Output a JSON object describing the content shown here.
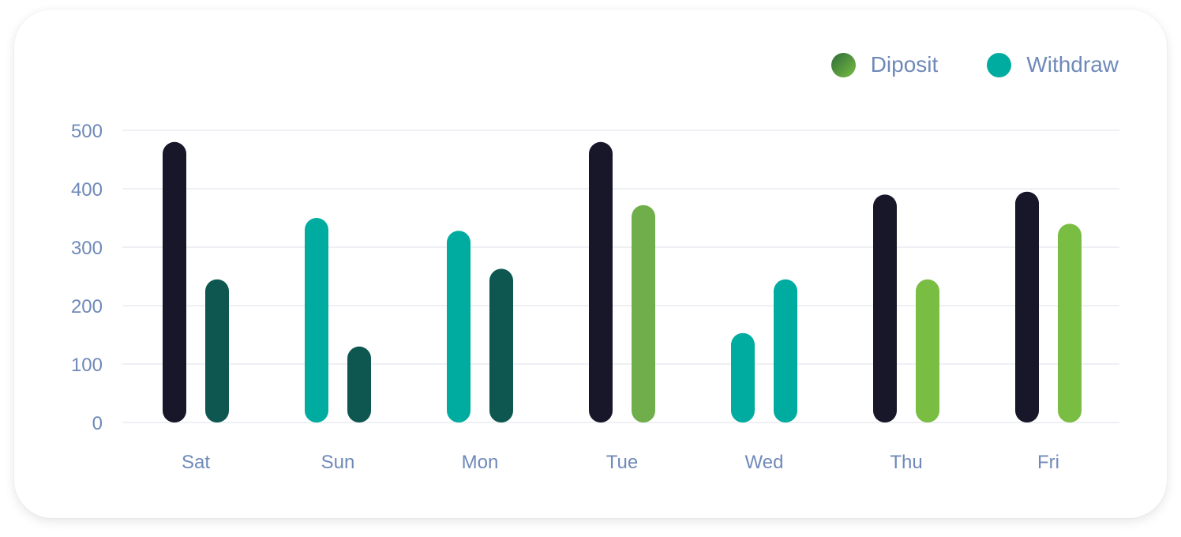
{
  "legend": {
    "deposit": {
      "label": "Diposit",
      "color_from": "#2e6b3a",
      "color_to": "#79bd43"
    },
    "withdraw": {
      "label": "Withdraw",
      "color": "#00ac9f"
    }
  },
  "chart_data": {
    "type": "bar",
    "categories": [
      "Sat",
      "Sun",
      "Mon",
      "Tue",
      "Wed",
      "Thu",
      "Fri"
    ],
    "yticks": [
      "0",
      "100",
      "200",
      "300",
      "400",
      "500"
    ],
    "ylim": [
      0,
      500
    ],
    "grid": true,
    "legend_position": "top-right",
    "bars": [
      [
        {
          "value": 480,
          "color": "#181629"
        },
        {
          "value": 245,
          "color": "#0d5750"
        }
      ],
      [
        {
          "value": 350,
          "color": "#00ac9f"
        },
        {
          "value": 130,
          "color": "#0d5750"
        }
      ],
      [
        {
          "value": 328,
          "color": "#00ac9f"
        },
        {
          "value": 263,
          "color": "#0d5750"
        }
      ],
      [
        {
          "value": 480,
          "color": "#181629"
        },
        {
          "value": 372,
          "color": "#6fae4b"
        }
      ],
      [
        {
          "value": 153,
          "color": "#00ac9f"
        },
        {
          "value": 245,
          "color": "#00ac9f"
        }
      ],
      [
        {
          "value": 390,
          "color": "#181629"
        },
        {
          "value": 245,
          "color": "#79bd43"
        }
      ],
      [
        {
          "value": 395,
          "color": "#181629"
        },
        {
          "value": 340,
          "color": "#79bd43"
        }
      ]
    ]
  }
}
